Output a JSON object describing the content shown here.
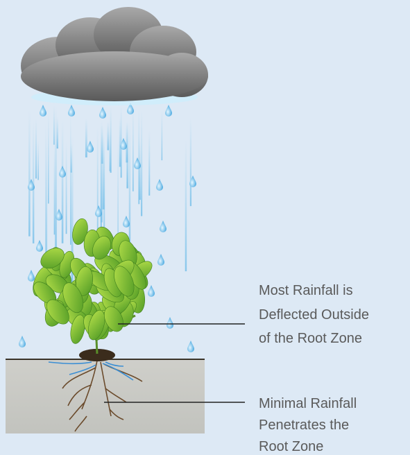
{
  "annotations": [
    {
      "lines": [
        "Most Rainfall is",
        "Deflected Outside",
        "of the Root Zone"
      ]
    },
    {
      "lines": [
        "Minimal Rainfall",
        "Penetrates the",
        "Root Zone"
      ]
    }
  ]
}
